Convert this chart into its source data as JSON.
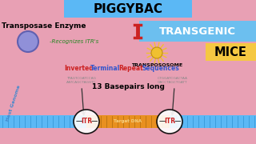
{
  "bg_color": "#e8a0b4",
  "title": "PIGGYBAC",
  "title_bg": "#5bb8f5",
  "title_color": "black",
  "transgenic_bg": "#6cbfef",
  "transgenic_color": "white",
  "mice_bg": "#f5c842",
  "mice_color": "black",
  "transposase_label": "Transposase Enzyme",
  "circle_color": "#9090d8",
  "circle_edge": "#6060b0",
  "recognizes_text": "-Recognizes ITR's",
  "transpososome_label": "TRANSPOSOSOME",
  "basepairs_text": "13 Basepairs long",
  "host_genome_text": "Host Genome",
  "target_dna_text": "Target DNA",
  "itr_label": "ITR",
  "dna_seq_left_1": "TTAGTCGATCCAG",
  "dna_seq_left_2": "AATCAGCTAGGTC",
  "dna_seq_right_1": "CTGGATCGACTAA",
  "dna_seq_right_2": "GACCTAGCTGATT",
  "dna_stripe_color": "#5bb8f5",
  "target_dna_color": "#e89020",
  "itr_color": "#cc2222",
  "sun_color": "#f0c030",
  "sun_edge": "#c09010",
  "ibar_color": "#cc2222",
  "inverted_red": "#cc2222",
  "inverted_black": "#000000",
  "seq_color": "#888888",
  "arrow_color": "#333333"
}
